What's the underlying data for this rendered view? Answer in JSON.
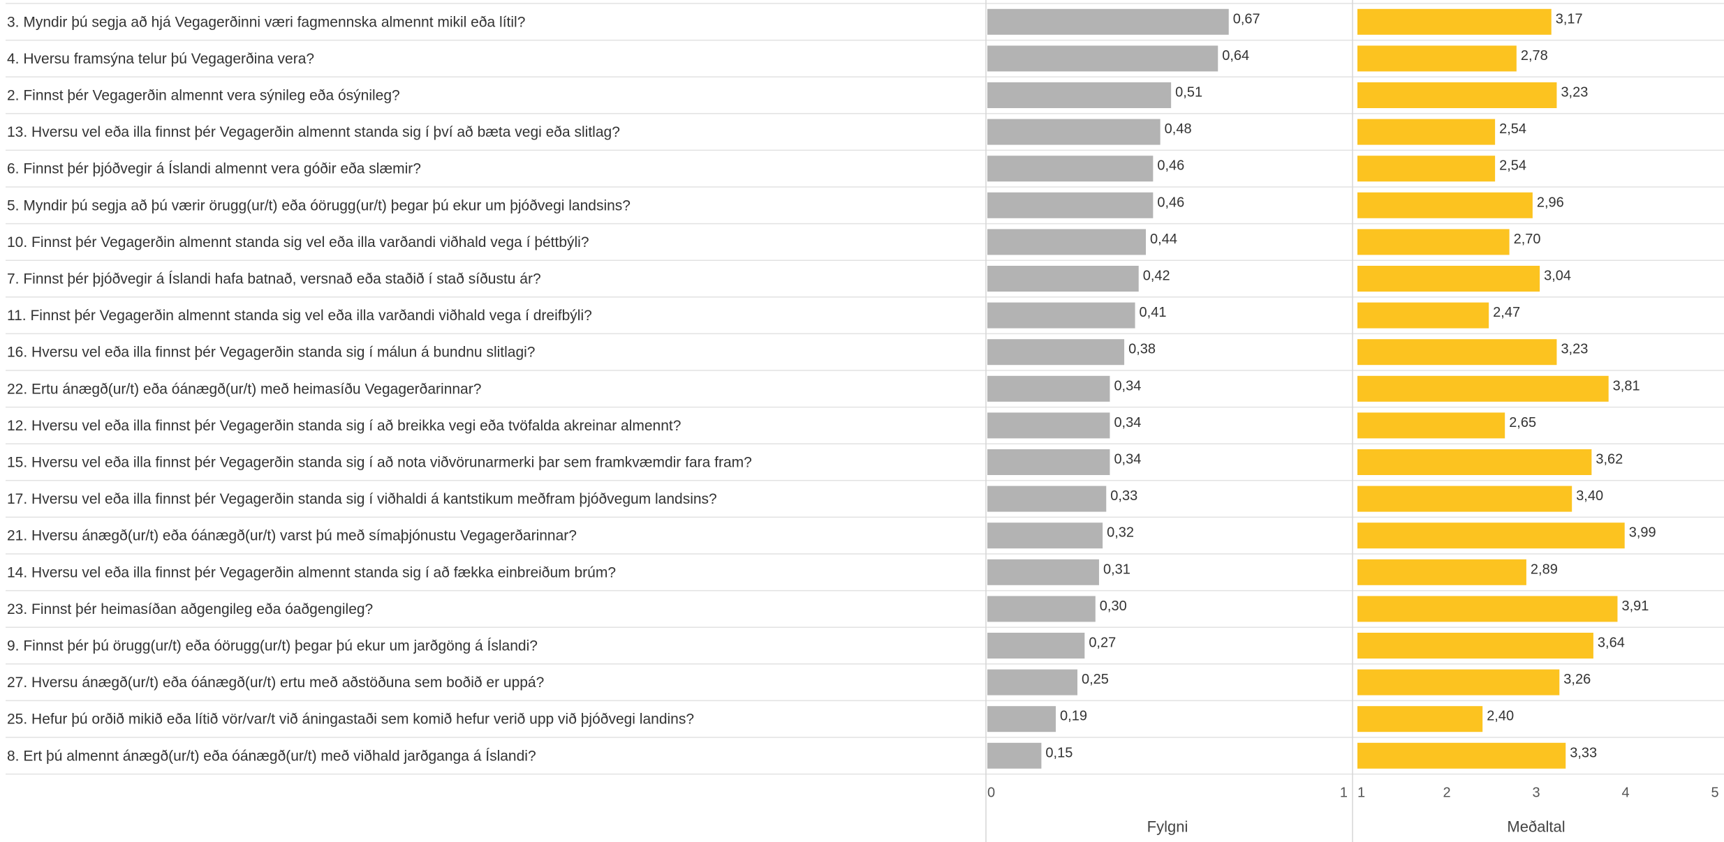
{
  "chart_data": {
    "type": "bar",
    "orientation": "horizontal",
    "categories": [
      "3. Myndir þú segja að hjá Vegagerðinni væri fagmennska almennt mikil eða lítil?",
      "4. Hversu framsýna telur þú Vegagerðina vera?",
      "2. Finnst þér Vegagerðin almennt vera sýnileg eða ósýnileg?",
      "13. Hversu vel eða illa finnst þér Vegagerðin almennt standa sig í því að bæta vegi eða slitlag?",
      "6. Finnst þér þjóðvegir á Íslandi almennt vera góðir eða slæmir?",
      "5. Myndir þú segja að þú værir örugg(ur/t) eða óörugg(ur/t) þegar þú ekur um þjóðvegi landsins?",
      "10. Finnst þér Vegagerðin almennt standa sig vel eða illa varðandi viðhald vega í þéttbýli?",
      "7. Finnst þér þjóðvegir á Íslandi hafa batnað, versnað eða staðið í stað síðustu ár?",
      "11. Finnst þér Vegagerðin almennt standa sig vel eða illa varðandi viðhald vega í dreifbýli?",
      "16. Hversu vel eða illa finnst þér Vegagerðin standa sig í málun á bundnu slitlagi?",
      "22. Ertu ánægð(ur/t) eða óánægð(ur/t) með heimasíðu Vegagerðarinnar?",
      "12. Hversu vel eða illa finnst þér Vegagerðin standa sig í að breikka vegi eða tvöfalda akreinar almennt?",
      "15. Hversu vel eða illa finnst þér Vegagerðin standa sig í að nota viðvörunarmerki þar sem framkvæmdir fara fram?",
      "17. Hversu vel eða illa finnst þér Vegagerðin standa sig í viðhaldi á kantstikum meðfram þjóðvegum landsins?",
      "21. Hversu ánægð(ur/t) eða óánægð(ur/t) varst þú með símaþjónustu Vegagerðarinnar?",
      "14. Hversu vel eða illa finnst þér Vegagerðin almennt standa sig í að fækka einbreiðum brúm?",
      "23. Finnst þér heimasíðan aðgengileg eða óaðgengileg?",
      "9. Finnst þér þú örugg(ur/t) eða óörugg(ur/t) þegar þú ekur um jarðgöng á Íslandi?",
      "27. Hversu ánægð(ur/t) eða óánægð(ur/t) ertu með aðstöðuna sem boðið er uppá?",
      "25. Hefur þú orðið mikið eða lítið vör/var/t við áningastaði sem komið hefur verið upp við þjóðvegi landins?",
      "8. Ert þú almennt ánægð(ur/t) eða óánægð(ur/t) með viðhald jarðganga á Íslandi?"
    ],
    "series": [
      {
        "name": "Fylgni",
        "color": "#b3b3b3",
        "values": [
          0.67,
          0.64,
          0.51,
          0.48,
          0.46,
          0.46,
          0.44,
          0.42,
          0.41,
          0.38,
          0.34,
          0.34,
          0.34,
          0.33,
          0.32,
          0.31,
          0.3,
          0.27,
          0.25,
          0.19,
          0.15
        ],
        "labels": [
          "0,67",
          "0,64",
          "0,51",
          "0,48",
          "0,46",
          "0,46",
          "0,44",
          "0,42",
          "0,41",
          "0,38",
          "0,34",
          "0,34",
          "0,34",
          "0,33",
          "0,32",
          "0,31",
          "0,30",
          "0,27",
          "0,25",
          "0,19",
          "0,15"
        ],
        "xlim": [
          0,
          1
        ],
        "ticks": [
          "0",
          "1"
        ],
        "xlabel": "Fylgni"
      },
      {
        "name": "Meðaltal",
        "color": "#fcc320",
        "values": [
          3.17,
          2.78,
          3.23,
          2.54,
          2.54,
          2.96,
          2.7,
          3.04,
          2.47,
          3.23,
          3.81,
          2.65,
          3.62,
          3.4,
          3.99,
          2.89,
          3.91,
          3.64,
          3.26,
          2.4,
          3.33
        ],
        "labels": [
          "3,17",
          "2,78",
          "3,23",
          "2,54",
          "2,54",
          "2,96",
          "2,70",
          "3,04",
          "2,47",
          "3,23",
          "3,81",
          "2,65",
          "3,62",
          "3,40",
          "3,99",
          "2,89",
          "3,91",
          "3,64",
          "3,26",
          "2,40",
          "3,33"
        ],
        "xlim": [
          1,
          5
        ],
        "ticks": [
          "1",
          "2",
          "3",
          "4",
          "5"
        ],
        "xlabel": "Meðaltal"
      }
    ]
  }
}
